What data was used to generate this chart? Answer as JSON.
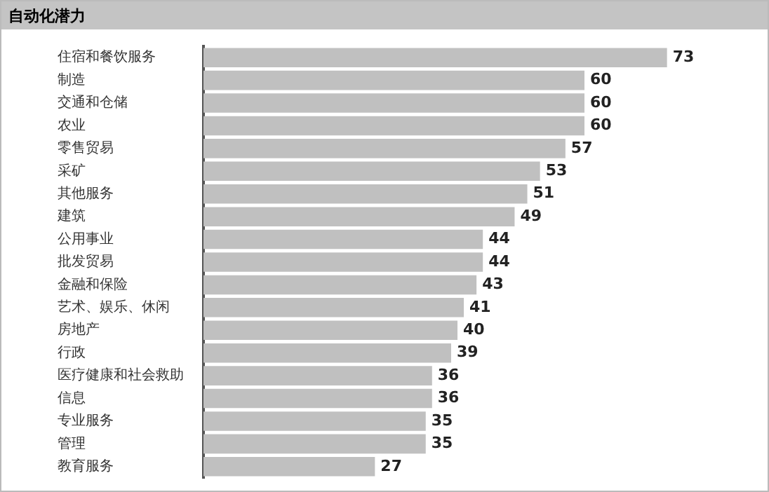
{
  "chart_data": {
    "type": "bar",
    "title": "自动化潜力",
    "orientation": "horizontal",
    "categories": [
      "住宿和餐饮服务",
      "制造",
      "交通和仓储",
      "农业",
      "零售贸易",
      "采矿",
      "其他服务",
      "建筑",
      "公用事业",
      "批发贸易",
      "金融和保险",
      "艺术、娱乐、休闲",
      "房地产",
      "行政",
      "医疗健康和社会救助",
      "信息",
      "专业服务",
      "管理",
      "教育服务"
    ],
    "values": [
      73,
      60,
      60,
      60,
      57,
      53,
      51,
      49,
      44,
      44,
      43,
      41,
      40,
      39,
      36,
      36,
      35,
      35,
      27
    ],
    "color": "#c0c0c0",
    "data_labels": true,
    "legend": false,
    "tick_labels": "y"
  }
}
